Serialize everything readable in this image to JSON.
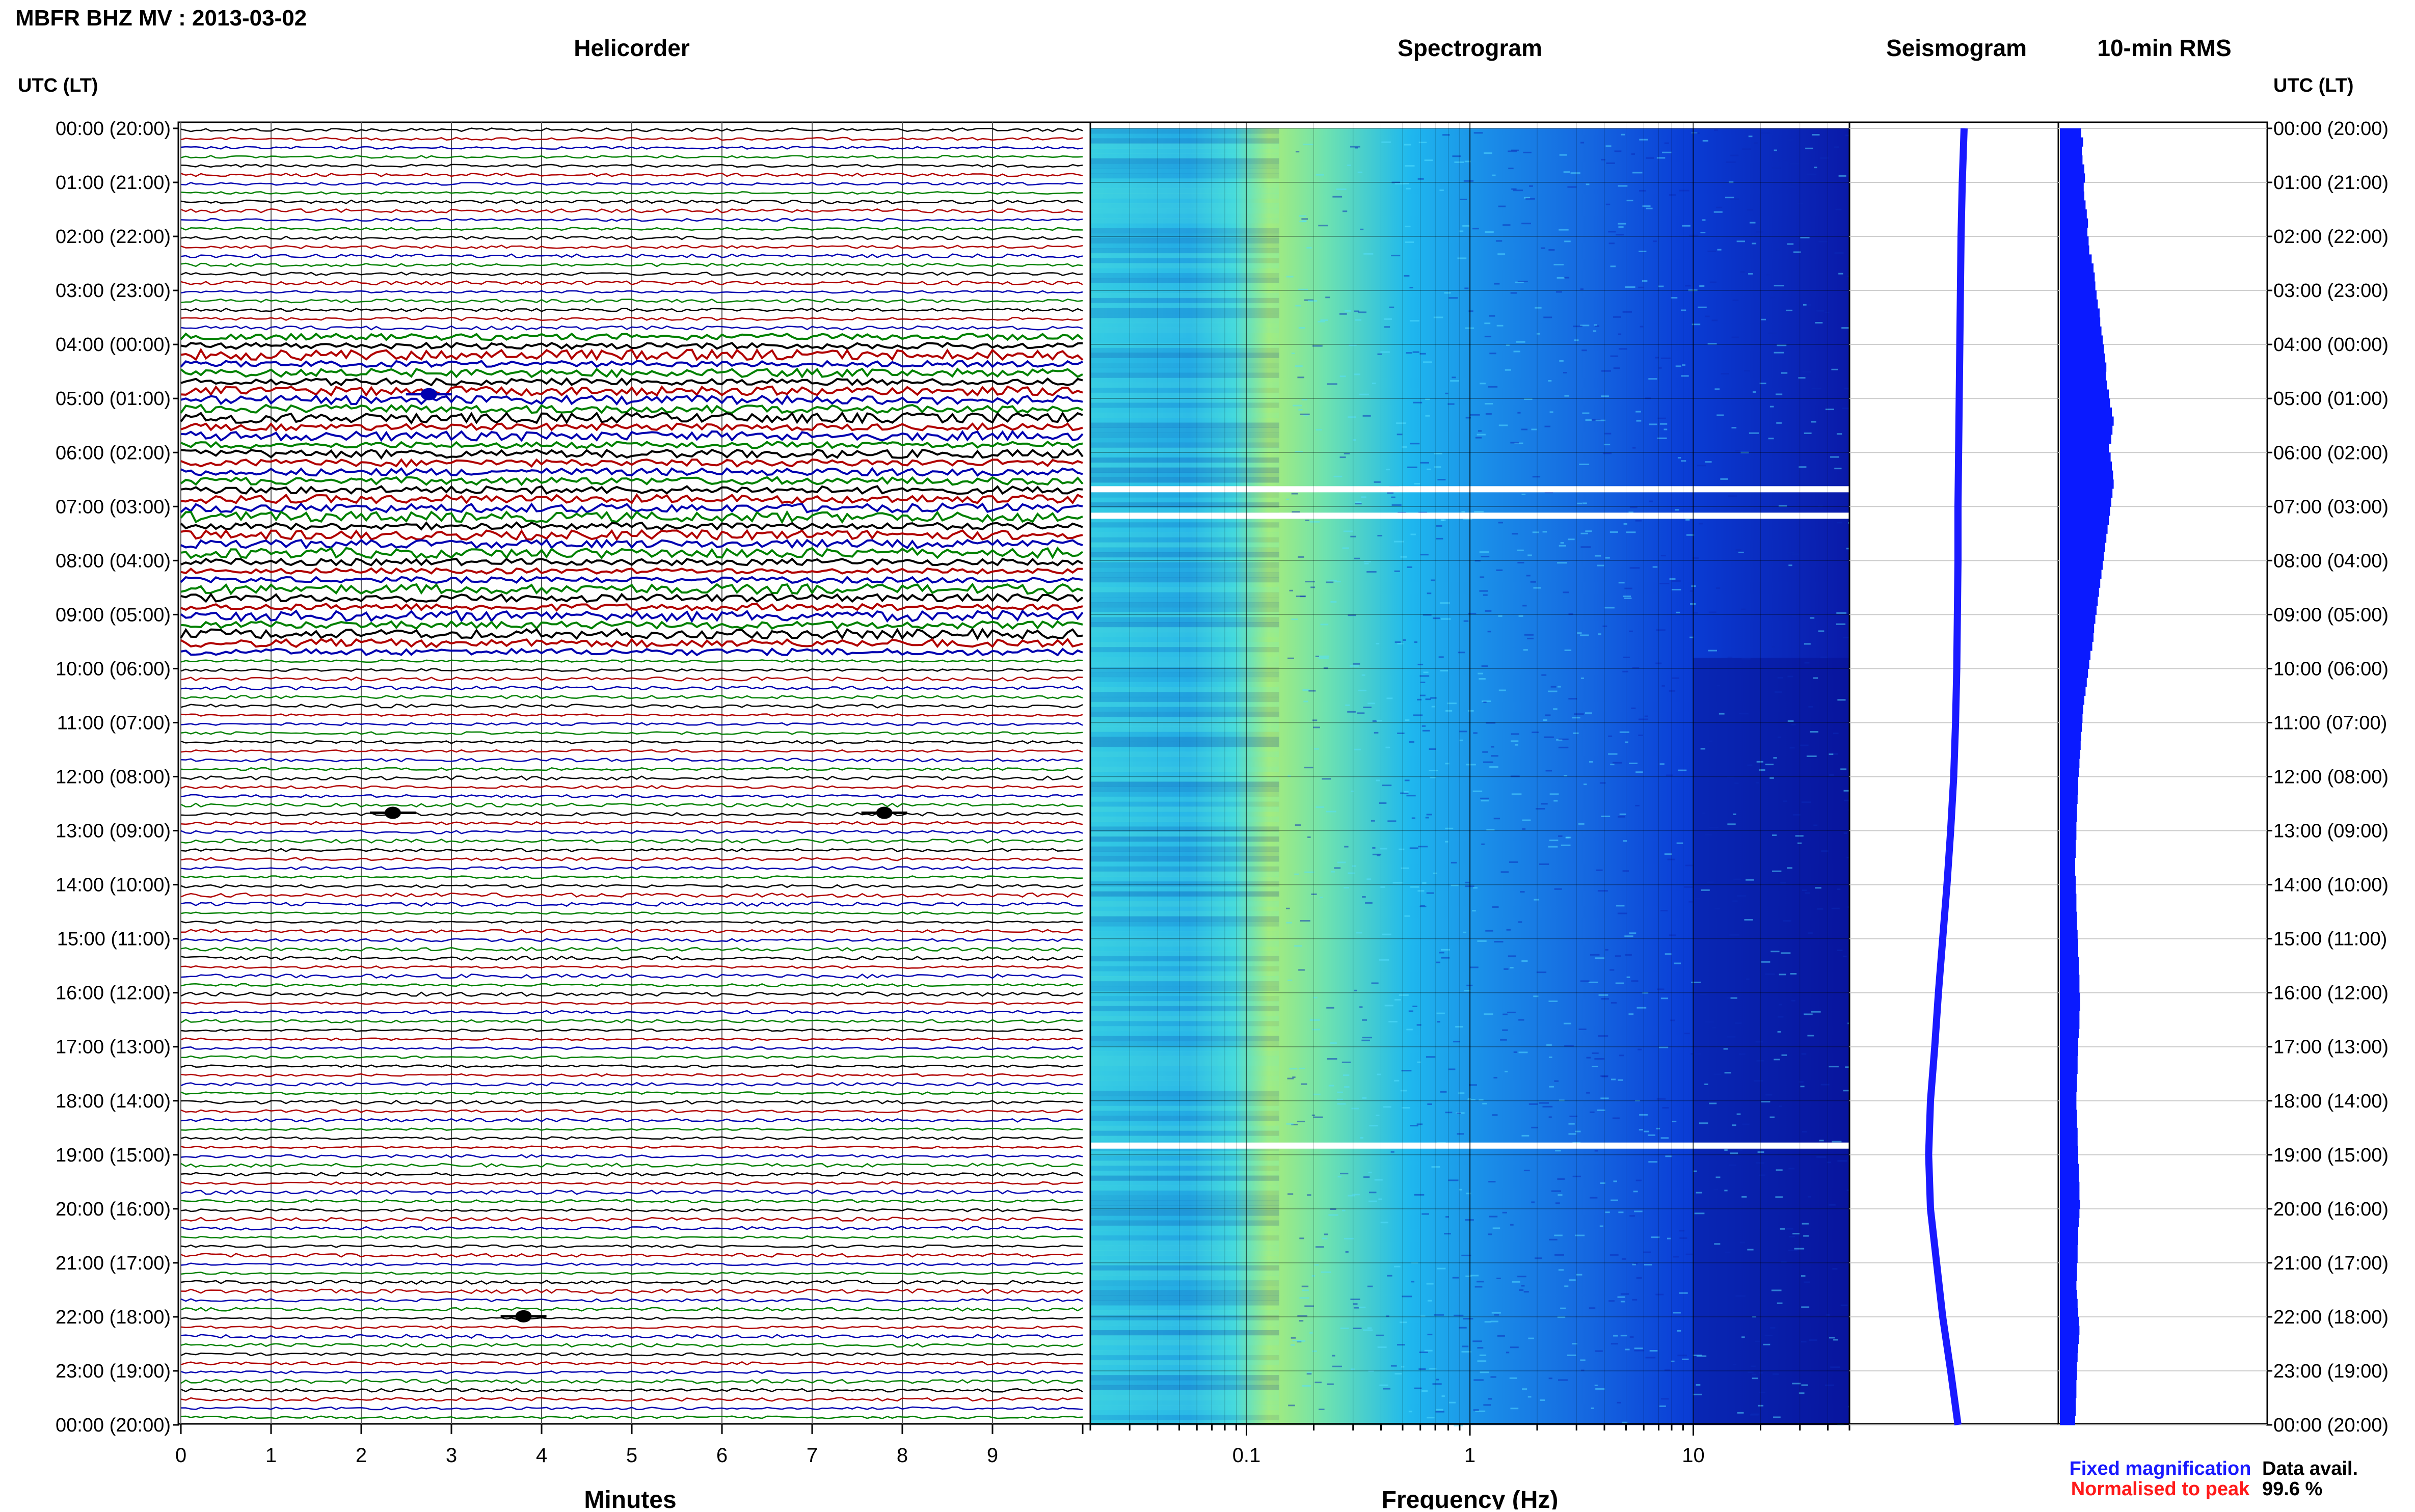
{
  "header": {
    "station_title": "MBFR BHZ MV : 2013-03-02",
    "utc_label_left": "UTC (LT)",
    "utc_label_right": "UTC (LT)"
  },
  "panels": {
    "helicorder": "Helicorder",
    "spectrogram": "Spectrogram",
    "seismogram": "Seismogram",
    "rms": "10-min RMS"
  },
  "axes": {
    "minutes_label": "Minutes",
    "frequency_label": "Frequency (Hz)"
  },
  "legend": {
    "fixed": "Fixed magnification",
    "normalised": "Normalised to peak",
    "data_avail_label": "Data avail.",
    "data_avail_value": "99.6 %"
  },
  "colors": {
    "fixed": "#1a1aff",
    "normalised": "#ff1a1a",
    "trace_colors": [
      "#000000",
      "#b00000",
      "#0000b0",
      "#008000"
    ],
    "rms": "#0a1aff",
    "seismo": "#1a1aff"
  },
  "chart_data": {
    "type": "heatmap",
    "time_labels": [
      "00:00 (20:00)",
      "01:00 (21:00)",
      "02:00 (22:00)",
      "03:00 (23:00)",
      "04:00 (00:00)",
      "05:00 (01:00)",
      "06:00 (02:00)",
      "07:00 (03:00)",
      "08:00 (04:00)",
      "09:00 (05:00)",
      "10:00 (06:00)",
      "11:00 (07:00)",
      "12:00 (08:00)",
      "13:00 (09:00)",
      "14:00 (10:00)",
      "15:00 (11:00)",
      "16:00 (12:00)",
      "17:00 (13:00)",
      "18:00 (14:00)",
      "19:00 (15:00)",
      "20:00 (16:00)",
      "21:00 (17:00)",
      "22:00 (18:00)",
      "23:00 (19:00)",
      "00:00 (20:00)"
    ],
    "minutes_ticks": [
      "0",
      "1",
      "2",
      "3",
      "4",
      "5",
      "6",
      "7",
      "8",
      "9"
    ],
    "frequency_ticks": [
      {
        "value": 0.1,
        "label": "0.1"
      },
      {
        "value": 1,
        "label": "1"
      },
      {
        "value": 10,
        "label": "10"
      }
    ],
    "frequency_range_hz": [
      0.02,
      50
    ],
    "minutes_range": [
      0,
      10
    ],
    "helicorder_rows": 144,
    "row_minutes": 10,
    "helicorder_events": [
      {
        "hour": 4.92,
        "minute": 2.75,
        "color": "#0000b0"
      },
      {
        "hour": 12.67,
        "minute": 2.35,
        "color": "#000000"
      },
      {
        "hour": 12.67,
        "minute": 7.8,
        "color": "#000000"
      },
      {
        "hour": 21.99,
        "minute": 3.8,
        "color": "#000000"
      }
    ],
    "spectrogram_gaps_hours": [
      6.68,
      7.17,
      18.83
    ],
    "rms_10min_relative": [
      0.35,
      0.38,
      0.36,
      0.37,
      0.4,
      0.41,
      0.39,
      0.4,
      0.42,
      0.44,
      0.46,
      0.45,
      0.47,
      0.48,
      0.52,
      0.55,
      0.57,
      0.58,
      0.6,
      0.62,
      0.65,
      0.66,
      0.68,
      0.7,
      0.72,
      0.74,
      0.76,
      0.75,
      0.77,
      0.8,
      0.82,
      0.85,
      0.88,
      0.86,
      0.84,
      0.8,
      0.83,
      0.85,
      0.87,
      0.88,
      0.86,
      0.84,
      0.82,
      0.8,
      0.78,
      0.76,
      0.74,
      0.72,
      0.7,
      0.68,
      0.66,
      0.64,
      0.62,
      0.6,
      0.58,
      0.56,
      0.55,
      0.53,
      0.5,
      0.48,
      0.46,
      0.44,
      0.42,
      0.4,
      0.38,
      0.37,
      0.36,
      0.35,
      0.34,
      0.33,
      0.32,
      0.31,
      0.3,
      0.3,
      0.29,
      0.28,
      0.28,
      0.27,
      0.27,
      0.26,
      0.26,
      0.25,
      0.25,
      0.26,
      0.26,
      0.27,
      0.27,
      0.28,
      0.28,
      0.29,
      0.3,
      0.3,
      0.31,
      0.31,
      0.32,
      0.32,
      0.33,
      0.33,
      0.32,
      0.32,
      0.31,
      0.3,
      0.3,
      0.29,
      0.29,
      0.28,
      0.28,
      0.27,
      0.27,
      0.28,
      0.28,
      0.29,
      0.29,
      0.3,
      0.3,
      0.31,
      0.31,
      0.32,
      0.32,
      0.33,
      0.32,
      0.31,
      0.3,
      0.3,
      0.29,
      0.29,
      0.28,
      0.28,
      0.27,
      0.28,
      0.29,
      0.3,
      0.31,
      0.32,
      0.31,
      0.3,
      0.29,
      0.28,
      0.28,
      0.27,
      0.27,
      0.26,
      0.26,
      0.25
    ],
    "seismogram_drift_relative": [
      0.0,
      -0.03,
      -0.05,
      -0.06,
      -0.07,
      -0.08,
      -0.09,
      -0.1,
      -0.1,
      -0.11,
      -0.12,
      -0.14,
      -0.17,
      -0.22,
      -0.28,
      -0.35,
      -0.42,
      -0.48,
      -0.55,
      -0.58,
      -0.55,
      -0.45,
      -0.35,
      -0.22,
      -0.1
    ]
  }
}
